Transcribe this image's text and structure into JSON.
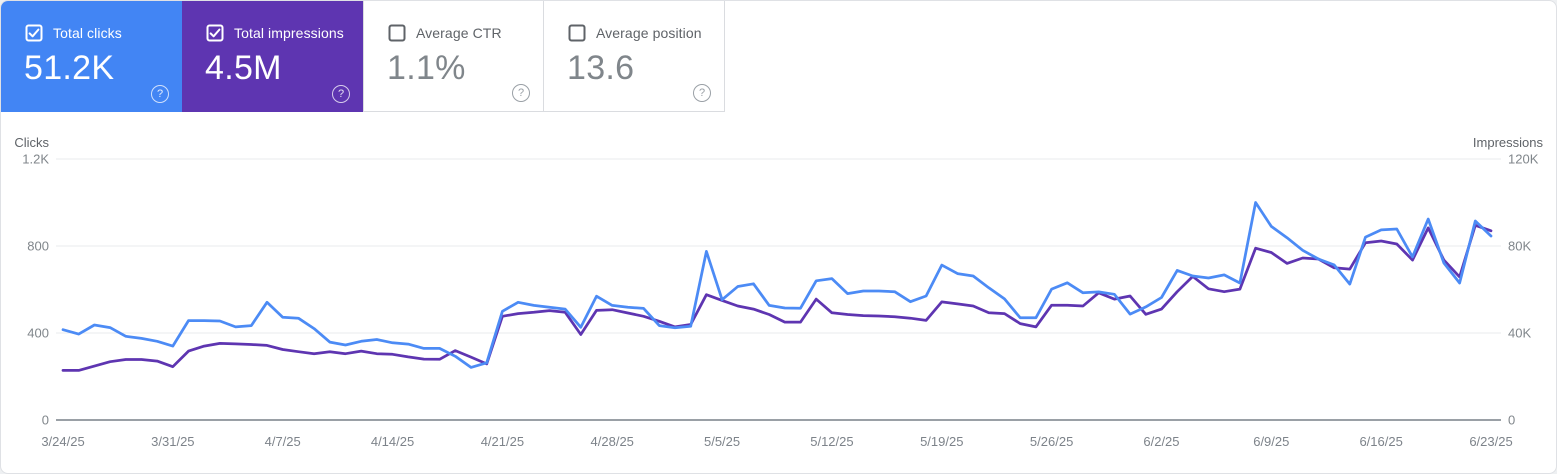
{
  "cards": [
    {
      "label": "Total clicks",
      "value": "51.2K",
      "checked": true,
      "bg": "#4285f4"
    },
    {
      "label": "Total impressions",
      "value": "4.5M",
      "checked": true,
      "bg": "#5e35b1"
    },
    {
      "label": "Average CTR",
      "value": "1.1%",
      "checked": false,
      "bg": "#ffffff"
    },
    {
      "label": "Average position",
      "value": "13.6",
      "checked": false,
      "bg": "#ffffff"
    }
  ],
  "icons": {
    "checkbox_checked": "☑",
    "checkbox_unchecked": "☐",
    "help_glyph": "?"
  },
  "chart_data": {
    "type": "line",
    "left_axis": {
      "title": "Clicks",
      "max": 1200,
      "ticks": [
        {
          "label": "1.2K",
          "value": 1200
        },
        {
          "label": "800",
          "value": 800
        },
        {
          "label": "400",
          "value": 400
        },
        {
          "label": "0",
          "value": 0
        }
      ]
    },
    "right_axis": {
      "title": "Impressions",
      "max": 120000,
      "ticks": [
        {
          "label": "120K",
          "value": 120000
        },
        {
          "label": "80K",
          "value": 80000
        },
        {
          "label": "40K",
          "value": 40000
        },
        {
          "label": "0",
          "value": 0
        }
      ]
    },
    "grid": true,
    "legend_position": "none",
    "x": [
      "3/24/25",
      "3/25/25",
      "3/26/25",
      "3/27/25",
      "3/28/25",
      "3/29/25",
      "3/30/25",
      "3/31/25",
      "4/1/25",
      "4/2/25",
      "4/3/25",
      "4/4/25",
      "4/5/25",
      "4/6/25",
      "4/7/25",
      "4/8/25",
      "4/9/25",
      "4/10/25",
      "4/11/25",
      "4/12/25",
      "4/13/25",
      "4/14/25",
      "4/15/25",
      "4/16/25",
      "4/17/25",
      "4/18/25",
      "4/19/25",
      "4/20/25",
      "4/21/25",
      "4/22/25",
      "4/23/25",
      "4/24/25",
      "4/25/25",
      "4/26/25",
      "4/27/25",
      "4/28/25",
      "4/29/25",
      "4/30/25",
      "5/1/25",
      "5/2/25",
      "5/3/25",
      "5/4/25",
      "5/5/25",
      "5/6/25",
      "5/7/25",
      "5/8/25",
      "5/9/25",
      "5/10/25",
      "5/11/25",
      "5/12/25",
      "5/13/25",
      "5/14/25",
      "5/15/25",
      "5/16/25",
      "5/17/25",
      "5/18/25",
      "5/19/25",
      "5/20/25",
      "5/21/25",
      "5/22/25",
      "5/23/25",
      "5/24/25",
      "5/25/25",
      "5/26/25",
      "5/27/25",
      "5/28/25",
      "5/29/25",
      "5/30/25",
      "5/31/25",
      "6/1/25",
      "6/2/25",
      "6/3/25",
      "6/4/25",
      "6/5/25",
      "6/6/25",
      "6/7/25",
      "6/8/25",
      "6/9/25",
      "6/10/25",
      "6/11/25",
      "6/12/25",
      "6/13/25",
      "6/14/25",
      "6/15/25",
      "6/16/25",
      "6/17/25",
      "6/18/25",
      "6/19/25",
      "6/20/25",
      "6/21/25",
      "6/22/25",
      "6/23/25"
    ],
    "x_ticks": [
      {
        "i": 0,
        "label": "3/24/25"
      },
      {
        "i": 7,
        "label": "3/31/25"
      },
      {
        "i": 14,
        "label": "4/7/25"
      },
      {
        "i": 21,
        "label": "4/14/25"
      },
      {
        "i": 28,
        "label": "4/21/25"
      },
      {
        "i": 35,
        "label": "4/28/25"
      },
      {
        "i": 42,
        "label": "5/5/25"
      },
      {
        "i": 49,
        "label": "5/12/25"
      },
      {
        "i": 56,
        "label": "5/19/25"
      },
      {
        "i": 63,
        "label": "5/26/25"
      },
      {
        "i": 70,
        "label": "6/2/25"
      },
      {
        "i": 77,
        "label": "6/9/25"
      },
      {
        "i": 84,
        "label": "6/16/25"
      },
      {
        "i": 91,
        "label": "6/23/25"
      }
    ],
    "series": [
      {
        "name": "Total impressions",
        "axis": "right",
        "color": "#5e35b1",
        "values": [
          22800,
          22800,
          24800,
          26800,
          27800,
          27800,
          27100,
          24500,
          31700,
          34000,
          35200,
          35000,
          34700,
          34300,
          32400,
          31400,
          30500,
          31400,
          30500,
          31700,
          30500,
          30200,
          29000,
          28000,
          27900,
          31900,
          28900,
          25800,
          47700,
          48900,
          49500,
          50300,
          49500,
          39300,
          50400,
          50700,
          49200,
          47700,
          45400,
          42800,
          43900,
          57600,
          55000,
          52400,
          51000,
          48500,
          45000,
          45000,
          55600,
          49300,
          48500,
          48000,
          47800,
          47500,
          46800,
          45800,
          54300,
          53400,
          52400,
          49300,
          48900,
          44300,
          42800,
          52800,
          52800,
          52400,
          58500,
          55600,
          57000,
          48600,
          51000,
          59000,
          66000,
          60300,
          59000,
          60200,
          79000,
          77000,
          72000,
          74500,
          74000,
          70000,
          69400,
          81500,
          82300,
          80900,
          73500,
          88300,
          73500,
          65800,
          89500,
          87000
        ]
      },
      {
        "name": "Total clicks",
        "axis": "left",
        "color": "#4c8bf5",
        "values": [
          415,
          395,
          437,
          425,
          385,
          375,
          362,
          340,
          457,
          457,
          455,
          428,
          434,
          541,
          472,
          468,
          420,
          358,
          345,
          362,
          370,
          355,
          349,
          329,
          329,
          293,
          242,
          263,
          500,
          541,
          527,
          518,
          510,
          426,
          569,
          527,
          518,
          513,
          434,
          424,
          431,
          775,
          553,
          614,
          626,
          527,
          515,
          514,
          640,
          650,
          581,
          593,
          593,
          590,
          544,
          570,
          712,
          673,
          662,
          608,
          557,
          470,
          470,
          602,
          631,
          585,
          589,
          578,
          487,
          520,
          563,
          688,
          662,
          653,
          667,
          630,
          1000,
          890,
          838,
          780,
          740,
          713,
          625,
          841,
          874,
          878,
          750,
          924,
          722,
          630,
          915,
          846
        ]
      }
    ]
  }
}
